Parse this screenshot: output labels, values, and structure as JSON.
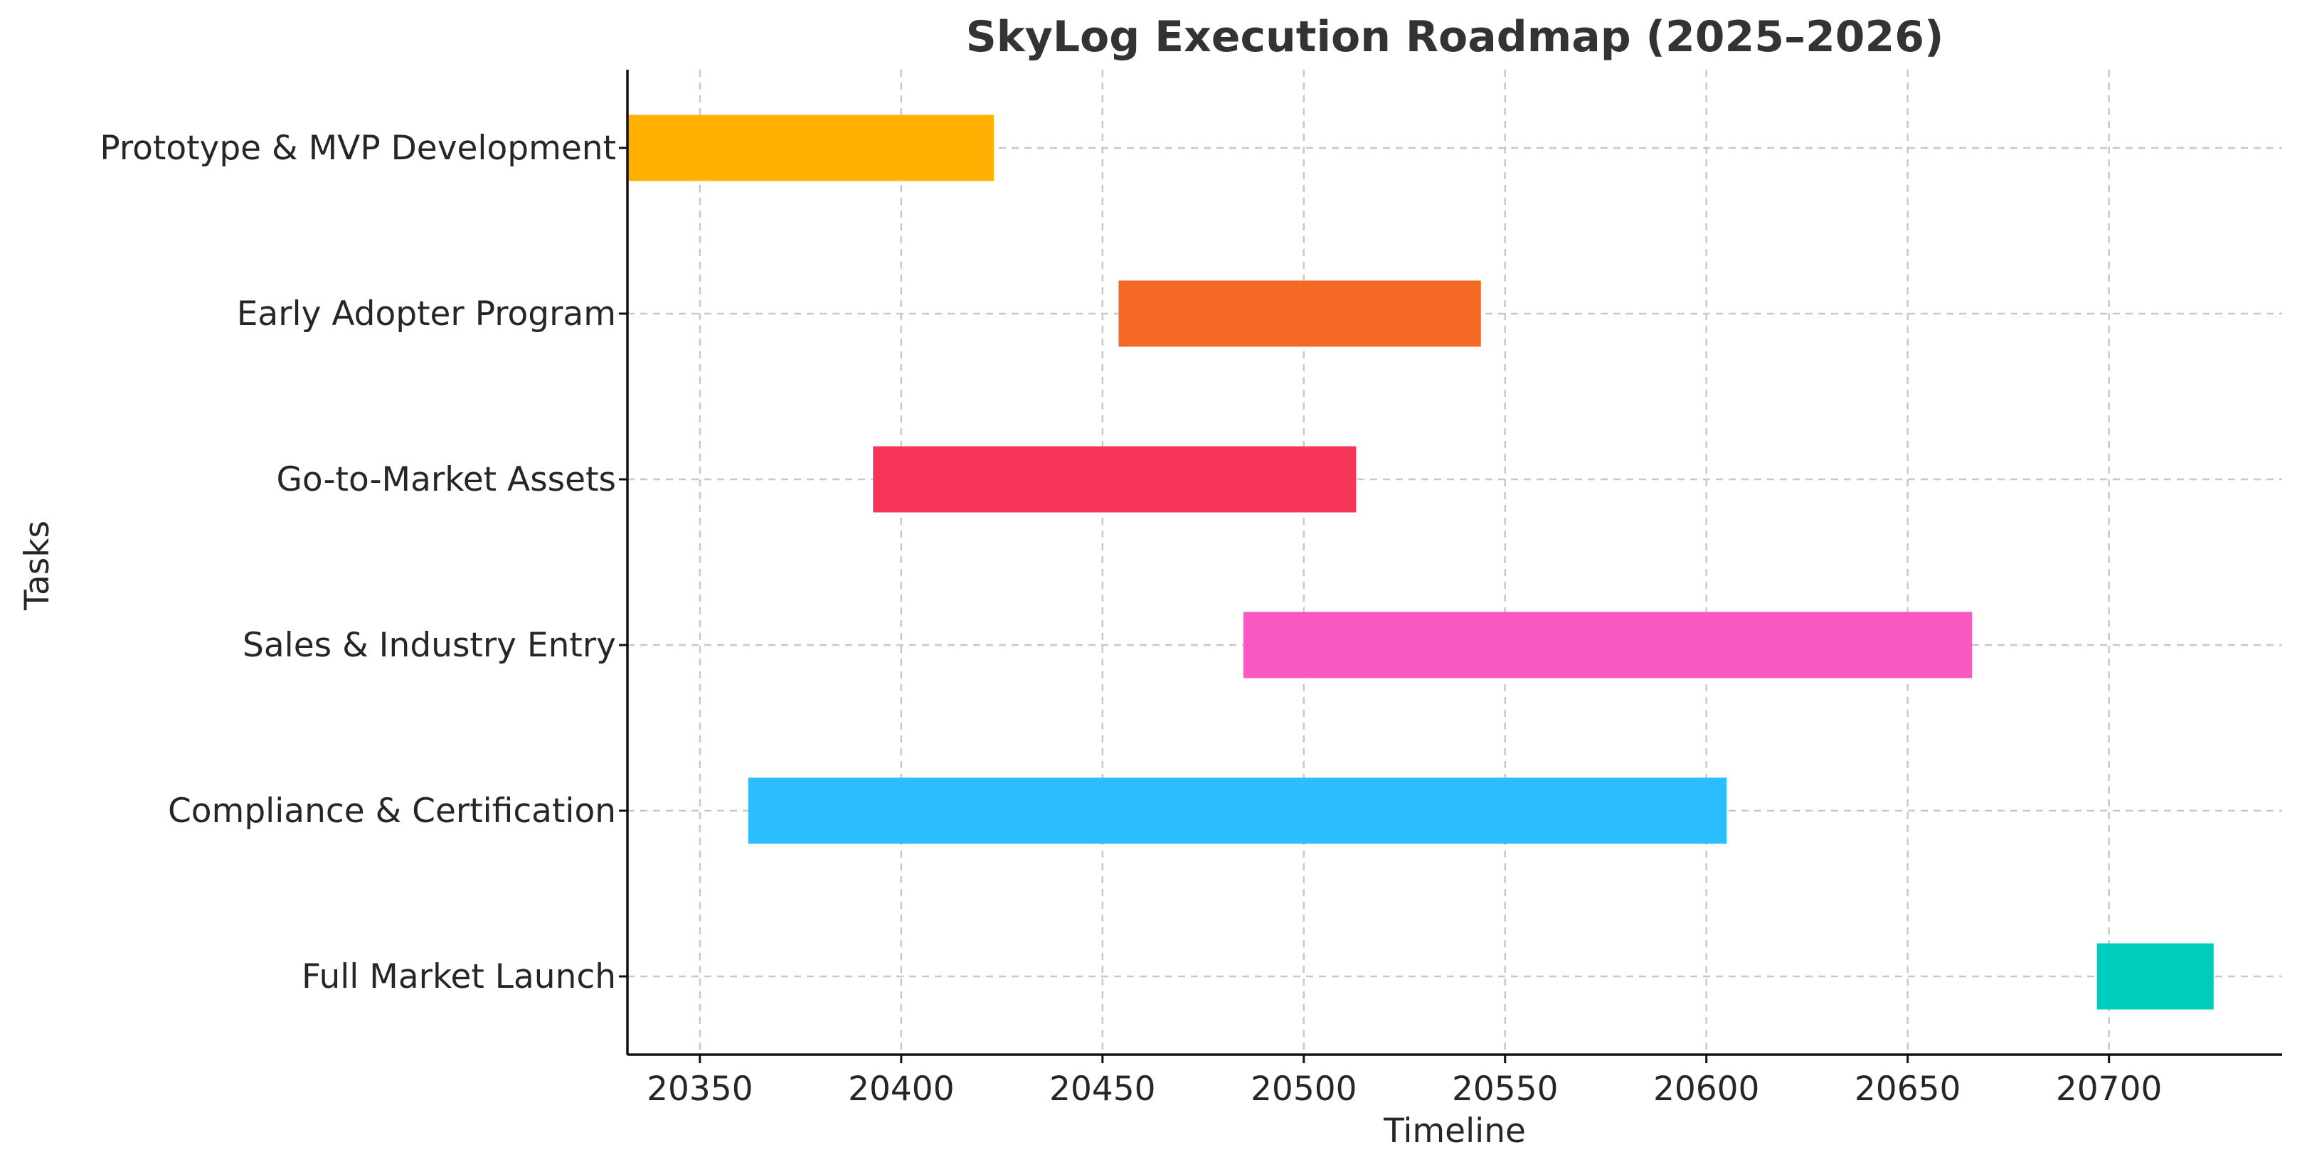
{
  "chart_data": {
    "type": "bar",
    "orientation": "horizontal",
    "title": "SkyLog Execution Roadmap (2025–2026)",
    "xlabel": "Timeline",
    "ylabel": "Tasks",
    "xlim": [
      20332,
      20743
    ],
    "x_ticks": [
      20350,
      20400,
      20450,
      20500,
      20550,
      20600,
      20650,
      20700
    ],
    "grid": true,
    "tasks": [
      {
        "label": "Prototype & MVP Development",
        "start": 20332,
        "end": 20423,
        "color": "#FFB000"
      },
      {
        "label": "Early Adopter Program",
        "start": 20454,
        "end": 20544,
        "color": "#F46A25"
      },
      {
        "label": "Go-to-Market Assets",
        "start": 20393,
        "end": 20513,
        "color": "#F73558"
      },
      {
        "label": "Sales & Industry Entry",
        "start": 20485,
        "end": 20666,
        "color": "#F958C3"
      },
      {
        "label": "Compliance & Certification",
        "start": 20362,
        "end": 20605,
        "color": "#2BBEFC"
      },
      {
        "label": "Full Market Launch",
        "start": 20697,
        "end": 20726,
        "color": "#00CCBD"
      }
    ]
  }
}
